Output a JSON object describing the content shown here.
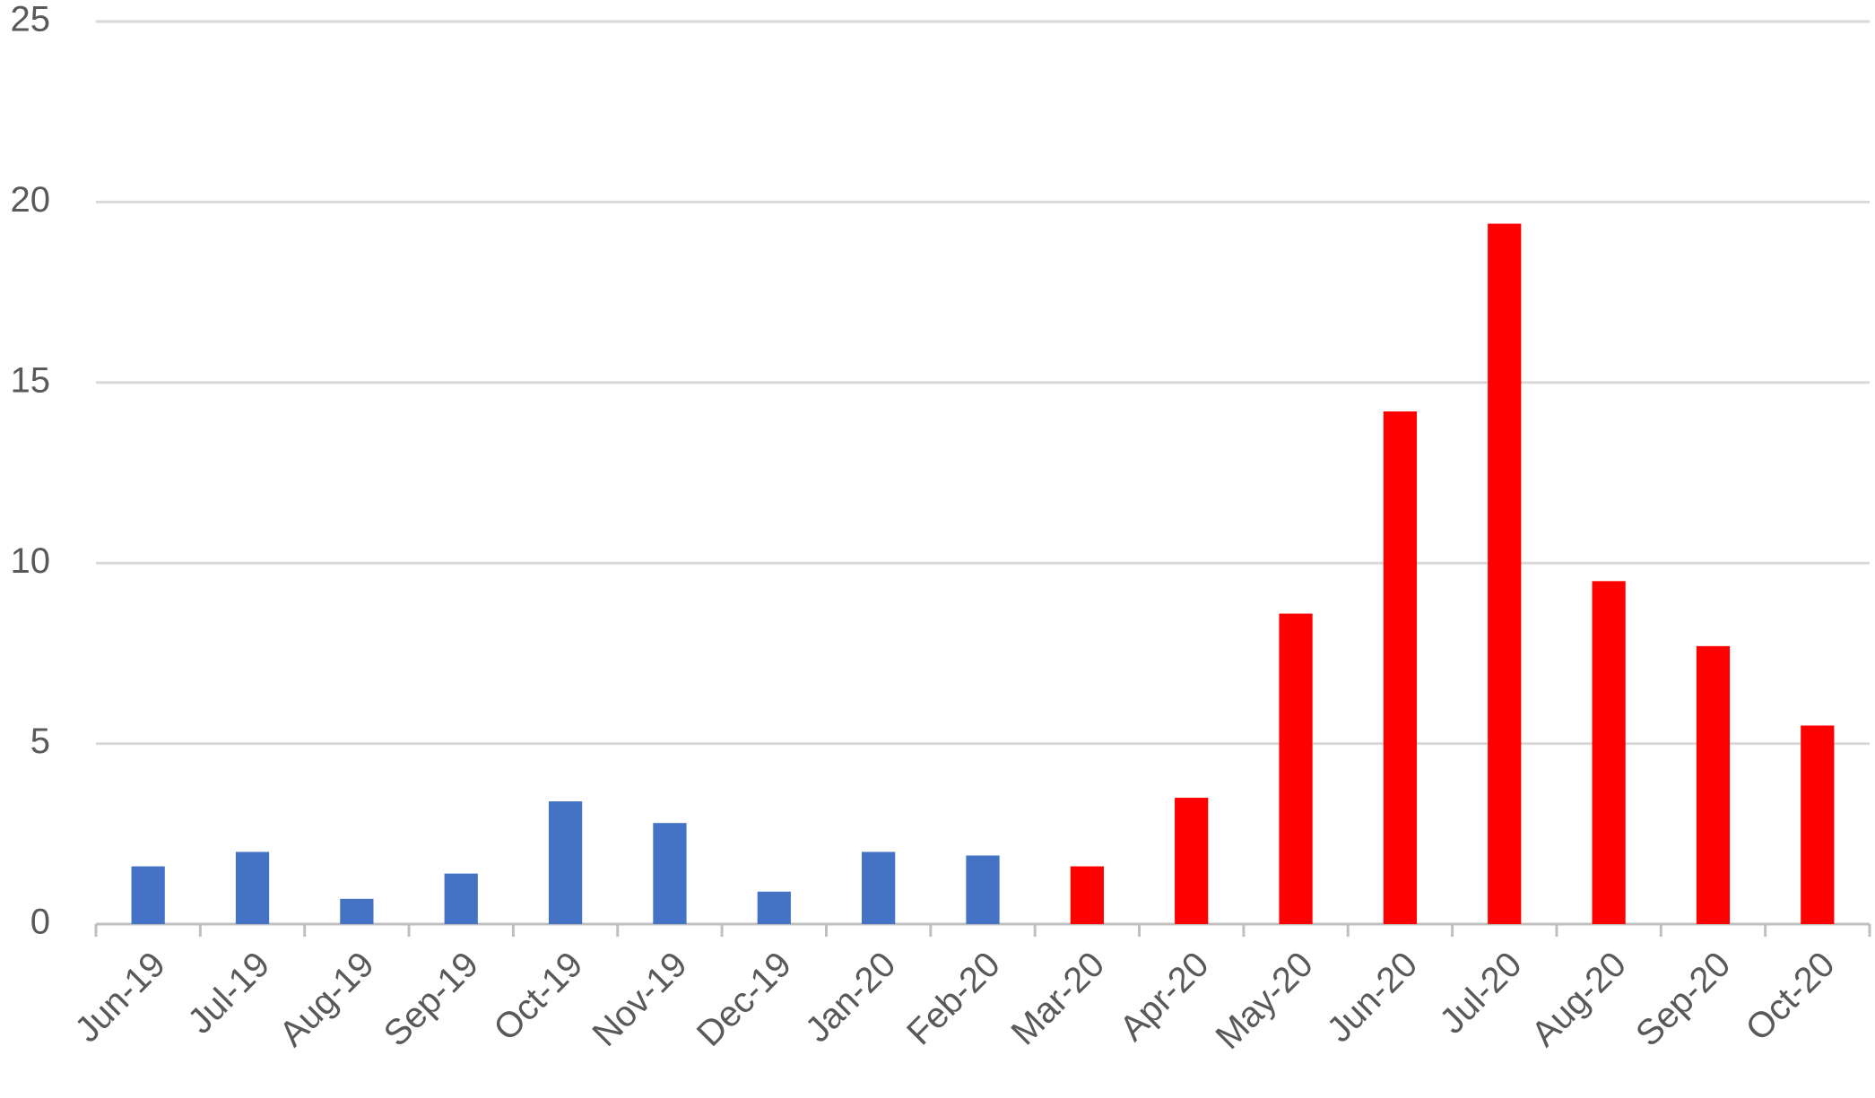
{
  "chart_data": {
    "type": "bar",
    "categories": [
      "Jun-19",
      "Jul-19",
      "Aug-19",
      "Sep-19",
      "Oct-19",
      "Nov-19",
      "Dec-19",
      "Jan-20",
      "Feb-20",
      "Mar-20",
      "Apr-20",
      "May-20",
      "Jun-20",
      "Jul-20",
      "Aug-20",
      "Sep-20",
      "Oct-20"
    ],
    "values": [
      1.6,
      2.0,
      0.7,
      1.4,
      3.4,
      2.8,
      0.9,
      2.0,
      1.9,
      1.6,
      3.5,
      8.6,
      14.2,
      19.4,
      9.5,
      7.7,
      5.5
    ],
    "colors": [
      "#4472c4",
      "#4472c4",
      "#4472c4",
      "#4472c4",
      "#4472c4",
      "#4472c4",
      "#4472c4",
      "#4472c4",
      "#4472c4",
      "#ff0000",
      "#ff0000",
      "#ff0000",
      "#ff0000",
      "#ff0000",
      "#ff0000",
      "#ff0000",
      "#ff0000"
    ],
    "ylim": [
      0,
      25
    ],
    "yticks": [
      0,
      5,
      10,
      15,
      20,
      25
    ],
    "grid": true
  }
}
